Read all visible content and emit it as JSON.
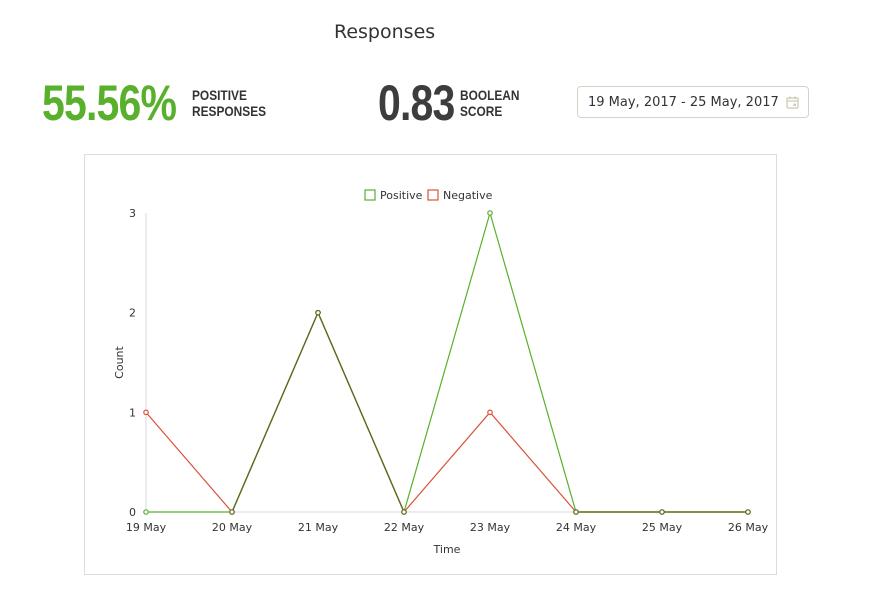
{
  "header": {
    "title": "Responses"
  },
  "metrics": {
    "positive": {
      "value": "55.56%",
      "label_line1": "POSITIVE",
      "label_line2": "RESPONSES"
    },
    "boolean": {
      "value": "0.83",
      "label_line1": "BOOLEAN",
      "label_line2": "SCORE"
    }
  },
  "date_range": {
    "value": "19 May, 2017 - 25 May, 2017",
    "icon": "calendar-icon"
  },
  "colors": {
    "positive": "#58b02d",
    "negative": "#d9533a",
    "overlap": "#5a6b1e",
    "axis": "#d8d8d8",
    "text": "#333333"
  },
  "chart_data": {
    "type": "line",
    "x": [
      "19 May",
      "20 May",
      "21 May",
      "22 May",
      "23 May",
      "24 May",
      "25 May",
      "26 May"
    ],
    "series": [
      {
        "name": "Positive",
        "values": [
          0,
          0,
          2,
          0,
          3,
          0,
          0,
          0
        ]
      },
      {
        "name": "Negative",
        "values": [
          1,
          0,
          2,
          0,
          1,
          0,
          0,
          0
        ]
      }
    ],
    "xlabel": "Time",
    "ylabel": "Count",
    "ylim": [
      0,
      3
    ],
    "yticks": [
      0,
      1,
      2,
      3
    ],
    "grid": false,
    "legend": "top-center"
  }
}
